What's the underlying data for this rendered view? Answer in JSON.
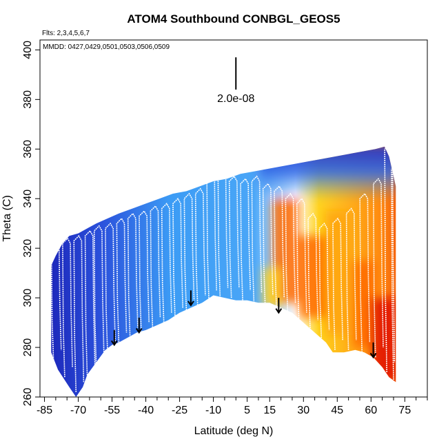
{
  "chart_data": {
    "type": "heatmap",
    "title": "ATOM4 Southbound CONBGL_GEOS5",
    "subtitle_flights": "Flts: 2,3,4,5,6,7",
    "subtitle_dates": "MMDD: 0427,0429,0501,0503,0506,0509",
    "xlabel": "Latitude (deg N)",
    "ylabel": "Theta (C)",
    "xlim": [
      -87,
      85
    ],
    "ylim": [
      260,
      404
    ],
    "x_ticks": [
      -85,
      -70,
      -55,
      -40,
      -25,
      -10,
      5,
      15,
      30,
      45,
      60,
      75
    ],
    "x_minor_ticks": [
      -80,
      -75,
      -65,
      -60,
      -50,
      -45,
      -35,
      -30,
      -20,
      -15,
      -5,
      0,
      10,
      20,
      25,
      35,
      40,
      50,
      55,
      65,
      70,
      80,
      85
    ],
    "y_ticks": [
      260,
      280,
      300,
      320,
      340,
      360,
      380,
      400
    ],
    "scale_bar_label": "2.0e-08",
    "scale_bar_theta": [
      384,
      397
    ],
    "scale_bar_lat": 0,
    "colors": {
      "low": "#1a1fb4",
      "mid": "#3c9cf5",
      "white": "#ffffff",
      "high": "#ffd21e",
      "max": "#e01000",
      "trace": "#ffffff"
    },
    "data_bottom": [
      [
        -82,
        278
      ],
      [
        -79,
        271
      ],
      [
        -74,
        264
      ],
      [
        -71,
        260
      ],
      [
        -68,
        264
      ],
      [
        -66,
        269
      ],
      [
        -62,
        274
      ],
      [
        -58,
        279
      ],
      [
        -55,
        281
      ],
      [
        -52,
        282
      ],
      [
        -48,
        284
      ],
      [
        -44,
        286
      ],
      [
        -40,
        287
      ],
      [
        -35,
        289
      ],
      [
        -30,
        291
      ],
      [
        -25,
        294
      ],
      [
        -20,
        296
      ],
      [
        -15,
        298
      ],
      [
        -10,
        301
      ],
      [
        -5,
        300
      ],
      [
        0,
        299
      ],
      [
        5,
        299
      ],
      [
        10,
        298
      ],
      [
        15,
        298
      ],
      [
        20,
        296
      ],
      [
        25,
        294
      ],
      [
        30,
        290
      ],
      [
        35,
        286
      ],
      [
        40,
        282
      ],
      [
        43,
        278
      ],
      [
        48,
        278
      ],
      [
        53,
        279
      ],
      [
        57,
        278
      ],
      [
        61,
        276
      ],
      [
        65,
        272
      ],
      [
        68,
        268
      ],
      [
        71,
        266
      ]
    ],
    "data_top": [
      [
        -82,
        313
      ],
      [
        -80,
        317
      ],
      [
        -77,
        322
      ],
      [
        -74,
        325
      ],
      [
        -70,
        326
      ],
      [
        -66,
        328
      ],
      [
        -62,
        330
      ],
      [
        -57,
        332
      ],
      [
        -52,
        334
      ],
      [
        -46,
        336
      ],
      [
        -40,
        338
      ],
      [
        -34,
        340
      ],
      [
        -28,
        342
      ],
      [
        -22,
        343
      ],
      [
        -16,
        345
      ],
      [
        -10,
        347
      ],
      [
        -4,
        348
      ],
      [
        2,
        350
      ],
      [
        8,
        351
      ],
      [
        14,
        352
      ],
      [
        20,
        353
      ],
      [
        26,
        354
      ],
      [
        32,
        355
      ],
      [
        38,
        356
      ],
      [
        44,
        357
      ],
      [
        50,
        358
      ],
      [
        56,
        359
      ],
      [
        62,
        360
      ],
      [
        66,
        361
      ],
      [
        68,
        357
      ],
      [
        71,
        345
      ]
    ],
    "warm_regions": [
      {
        "lat": [
          16,
          28
        ],
        "theta": [
          298,
          340
        ],
        "value": 0.85
      },
      {
        "lat": [
          28,
          40
        ],
        "theta": [
          292,
          325
        ],
        "value": 0.9
      },
      {
        "lat": [
          40,
          52
        ],
        "theta": [
          285,
          335
        ],
        "value": 0.8
      },
      {
        "lat": [
          52,
          62
        ],
        "theta": [
          280,
          315
        ],
        "value": 0.85
      },
      {
        "lat": [
          60,
          72
        ],
        "theta": [
          266,
          300
        ],
        "value": 1.0
      },
      {
        "lat": [
          12,
          20
        ],
        "theta": [
          296,
          312
        ],
        "value": 0.55
      }
    ],
    "arrows": [
      {
        "lat": -54,
        "theta_top": 287,
        "theta_tip": 281
      },
      {
        "lat": -43,
        "theta_top": 292,
        "theta_tip": 286
      },
      {
        "lat": -20,
        "theta_top": 303,
        "theta_tip": 297
      },
      {
        "lat": 19,
        "theta_top": 300,
        "theta_tip": 294
      },
      {
        "lat": 61,
        "theta_top": 282,
        "theta_tip": 276
      }
    ],
    "trace_profiles": [
      {
        "lat": -81,
        "bottom": 275,
        "top": 320
      },
      {
        "lat": -76,
        "bottom": 268,
        "top": 322
      },
      {
        "lat": -71,
        "bottom": 262,
        "top": 323
      },
      {
        "lat": -66,
        "bottom": 268,
        "top": 325
      },
      {
        "lat": -62,
        "bottom": 272,
        "top": 327
      },
      {
        "lat": -57,
        "bottom": 278,
        "top": 328
      },
      {
        "lat": -52,
        "bottom": 282,
        "top": 330
      },
      {
        "lat": -47,
        "bottom": 284,
        "top": 332
      },
      {
        "lat": -42,
        "bottom": 286,
        "top": 333
      },
      {
        "lat": -37,
        "bottom": 288,
        "top": 335
      },
      {
        "lat": -32,
        "bottom": 290,
        "top": 336
      },
      {
        "lat": -27,
        "bottom": 292,
        "top": 338
      },
      {
        "lat": -22,
        "bottom": 295,
        "top": 340
      },
      {
        "lat": -17,
        "bottom": 297,
        "top": 342
      },
      {
        "lat": -12,
        "bottom": 299,
        "top": 350
      },
      {
        "lat": -7,
        "bottom": 300,
        "top": 348
      },
      {
        "lat": -2,
        "bottom": 300,
        "top": 347
      },
      {
        "lat": 3,
        "bottom": 299,
        "top": 346
      },
      {
        "lat": 8,
        "bottom": 298,
        "top": 347
      },
      {
        "lat": 13,
        "bottom": 297,
        "top": 344
      },
      {
        "lat": 18,
        "bottom": 296,
        "top": 343
      },
      {
        "lat": 23,
        "bottom": 294,
        "top": 340
      },
      {
        "lat": 28,
        "bottom": 290,
        "top": 338
      },
      {
        "lat": 33,
        "bottom": 287,
        "top": 332
      },
      {
        "lat": 38,
        "bottom": 283,
        "top": 328
      },
      {
        "lat": 44,
        "bottom": 279,
        "top": 330
      },
      {
        "lat": 50,
        "bottom": 279,
        "top": 334
      },
      {
        "lat": 56,
        "bottom": 278,
        "top": 340
      },
      {
        "lat": 62,
        "bottom": 276,
        "top": 346
      },
      {
        "lat": 67,
        "bottom": 270,
        "top": 360
      },
      {
        "lat": 70,
        "bottom": 267,
        "top": 352
      }
    ]
  }
}
